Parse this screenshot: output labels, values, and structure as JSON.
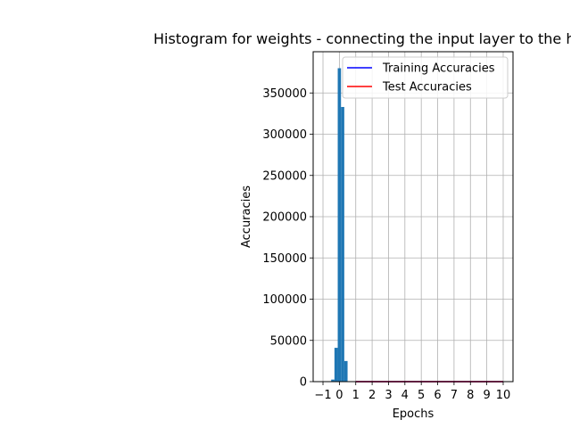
{
  "chart_data": {
    "type": "bar",
    "title": "Histogram for weights - connecting the input layer to the hidden layer",
    "xlabel": "Epochs",
    "ylabel": "Accuracies",
    "xlim": [
      -1.6,
      10.6
    ],
    "ylim": [
      0,
      400000
    ],
    "x_ticks": [
      -1,
      0,
      1,
      2,
      3,
      4,
      5,
      6,
      7,
      8,
      9,
      10
    ],
    "x_tick_labels": [
      "−1",
      "0",
      "1",
      "2",
      "3",
      "4",
      "5",
      "6",
      "7",
      "8",
      "9",
      "10"
    ],
    "y_ticks": [
      0,
      50000,
      100000,
      150000,
      200000,
      250000,
      300000,
      350000
    ],
    "y_tick_labels": [
      "0",
      "50000",
      "100000",
      "150000",
      "200000",
      "250000",
      "300000",
      "350000"
    ],
    "grid": true,
    "legend_position": "top-right",
    "histogram": {
      "color": "#1f77b4",
      "bins": [
        {
          "x0": -0.7,
          "x1": -0.5,
          "value": 500
        },
        {
          "x0": -0.5,
          "x1": -0.3,
          "value": 2500
        },
        {
          "x0": -0.3,
          "x1": -0.1,
          "value": 41000
        },
        {
          "x0": -0.1,
          "x1": 0.1,
          "value": 380000
        },
        {
          "x0": 0.1,
          "x1": 0.3,
          "value": 333000
        },
        {
          "x0": 0.3,
          "x1": 0.5,
          "value": 25000
        }
      ]
    },
    "series": [
      {
        "name": "Training Accuracies",
        "color": "#0000ff",
        "x": [
          1,
          2,
          3,
          4,
          5,
          6,
          7,
          8,
          9,
          10
        ],
        "values": [
          0.9,
          0.93,
          0.95,
          0.96,
          0.97,
          0.97,
          0.98,
          0.98,
          0.98,
          0.98
        ]
      },
      {
        "name": "Test Accuracies",
        "color": "#ff0000",
        "x": [
          1,
          2,
          3,
          4,
          5,
          6,
          7,
          8,
          9,
          10
        ],
        "values": [
          0.91,
          0.93,
          0.94,
          0.95,
          0.96,
          0.96,
          0.96,
          0.97,
          0.97,
          0.97
        ]
      }
    ]
  }
}
